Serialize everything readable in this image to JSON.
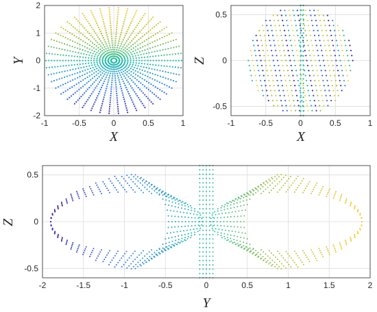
{
  "chart_data": [
    {
      "type": "scatter",
      "title": "",
      "xlabel": "X",
      "ylabel": "Y",
      "xlim": [
        -1,
        1
      ],
      "ylim": [
        -2,
        2
      ],
      "xticks": [
        "-1",
        "-0.5",
        "0",
        "0.5",
        "1"
      ],
      "yticks": [
        "-2",
        "-1",
        "0",
        "1",
        "2"
      ],
      "grid": true,
      "colormap": "parula",
      "color_by": "Y",
      "shape": "filled disk of radius 1 (X^2 + (Y/2)^2 <= 1) traced by dense trajectory points"
    },
    {
      "type": "scatter",
      "title": "",
      "xlabel": "X",
      "ylabel": "Z",
      "xlim": [
        -1,
        1
      ],
      "ylim": [
        -0.6,
        0.6
      ],
      "xticks": [
        "-1",
        "-0.5",
        "0",
        "0.5",
        "1"
      ],
      "yticks": [
        "-0.5",
        "0",
        "0.5"
      ],
      "grid": true,
      "colormap": "parula",
      "color_by": "Y",
      "shape": "ellipse |X| <= 0.75, |Z| <= 0.6 with diagonal trajectory streaks"
    },
    {
      "type": "scatter",
      "title": "",
      "xlabel": "Y",
      "ylabel": "Z",
      "xlim": [
        -2,
        2
      ],
      "ylim": [
        -0.6,
        0.6
      ],
      "xticks": [
        "-2",
        "-1.5",
        "-1",
        "-0.5",
        "0",
        "0.5",
        "1",
        "1.5",
        "2"
      ],
      "yticks": [
        "-0.5",
        "0",
        "0.5"
      ],
      "grid": true,
      "colormap": "parula",
      "color_by": "Y",
      "shape": "ellipse |Y| <= 1.9, |Z| <= 0.6 with two nested loop lobes pinched at Y = 0"
    }
  ],
  "colors": {
    "parula_low": "#3e26a8",
    "parula_mid_low": "#2f7ef2",
    "parula_mid": "#1fc0a4",
    "parula_mid_high": "#b8be33",
    "parula_high": "#f7d03c"
  }
}
